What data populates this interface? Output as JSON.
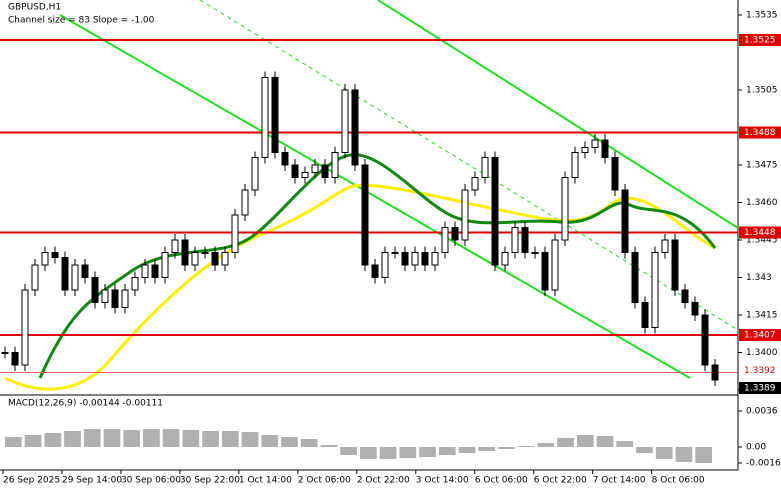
{
  "chart_data": {
    "type": "price",
    "title": "GBPUSD,H1",
    "subtitle": "Channel size = 83 Slope = -1.00",
    "ylim": [
      1.3383,
      1.3541
    ],
    "yticks": [
      1.3535,
      1.3505,
      1.3475,
      {
        "value": 1.346,
        "label": "1.3460"
      },
      1.3445,
      1.343,
      1.3415,
      {
        "value": 1.34,
        "label": "1.3400"
      },
      1.3385
    ],
    "levels": [
      1.3525,
      1.3488,
      1.3448,
      1.3407
    ],
    "level_color": "#e00000",
    "last_price_line": 1.3392,
    "current_price": 1.3389,
    "categories": [
      "26 Sep 2025",
      "29 Sep 14:00",
      "30 Sep 06:00",
      "30 Sep 22:00",
      "1 Oct 14:00",
      "2 Oct 06:00",
      "2 Oct 22:00",
      "3 Oct 14:00",
      "6 Oct 06:00",
      "6 Oct 22:00",
      "7 Oct 14:00",
      "8 Oct 06:00"
    ],
    "close": [
      1.34,
      1.3395,
      1.3425,
      1.3435,
      1.344,
      1.3438,
      1.3425,
      1.3435,
      1.343,
      1.342,
      1.3425,
      1.3418,
      1.3425,
      1.343,
      1.3435,
      1.343,
      1.344,
      1.3445,
      1.3435,
      1.344,
      1.344,
      1.3435,
      1.344,
      1.3455,
      1.3465,
      1.3478,
      1.351,
      1.348,
      1.3475,
      1.347,
      1.3472,
      1.3475,
      1.347,
      1.348,
      1.3505,
      1.3475,
      1.3435,
      1.343,
      1.344,
      1.344,
      1.3435,
      1.344,
      1.3435,
      1.344,
      1.345,
      1.3445,
      1.3465,
      1.347,
      1.3478,
      1.3435,
      1.344,
      1.345,
      1.344,
      1.344,
      1.3425,
      1.3445,
      1.347,
      1.348,
      1.3482,
      1.3485,
      1.3478,
      1.3465,
      1.344,
      1.342,
      1.341,
      1.344,
      1.3445,
      1.3425,
      1.342,
      1.3415,
      1.3395,
      1.3389
    ],
    "macd": {
      "label": "MACD(12,26,9) -0.00144 -0.00111",
      "ylim": [
        -0.0022,
        0.005
      ],
      "yticks": [
        0.0036,
        {
          "value": 0,
          "label": "0.00"
        },
        -0.0016
      ],
      "values": [
        0.001,
        0.0012,
        0.0014,
        0.0016,
        0.0018,
        0.0018,
        0.0017,
        0.0018,
        0.0018,
        0.0017,
        0.0016,
        0.0016,
        0.0015,
        0.0012,
        0.001,
        0.0008,
        0.0002,
        -0.0008,
        -0.0012,
        -0.0012,
        -0.0011,
        -0.001,
        -0.0008,
        -0.0006,
        -0.0004,
        -0.0002,
        0.0001,
        0.0004,
        0.0009,
        0.0012,
        0.0011,
        0.0006,
        -0.0006,
        -0.0012,
        -0.0015,
        -0.0016
      ]
    }
  }
}
